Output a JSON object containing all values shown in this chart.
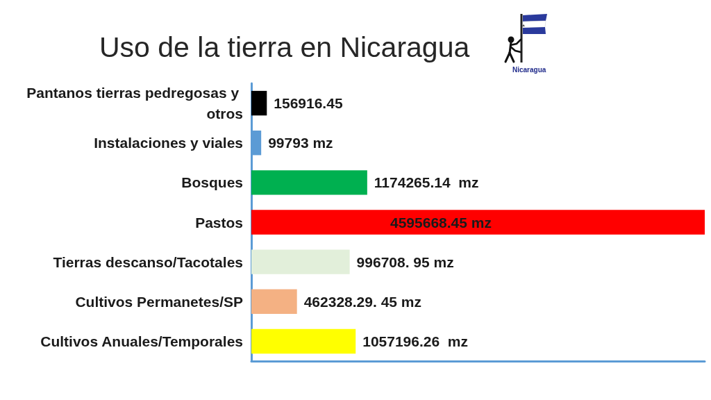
{
  "chart_data": {
    "type": "bar",
    "orientation": "horizontal",
    "title": "Uso de la tierra en Nicaragua",
    "categories": [
      "Pantanos tierras pedregosas y otros",
      "Instalaciones y viales",
      "Bosques",
      "Pastos",
      "Tierras descanso/Tacotales",
      "Cultivos Permanetes/SP",
      "Cultivos Anuales/Temporales"
    ],
    "values": [
      156916.45,
      99793,
      1174265.14,
      4595668.45,
      996708,
      462328.29,
      1057196.26
    ],
    "colors": [
      "#000000",
      "#5b9bd5",
      "#00b050",
      "#ff0000",
      "#e2efda",
      "#f4b183",
      "#ffff00"
    ],
    "value_labels": [
      "156916.45",
      "99793 mz",
      "1174265.14  mz",
      "4595668.45 mz",
      "996708. 95 mz",
      "462328.29. 45 mz",
      "1057196.26  mz"
    ],
    "tick_labels": "y",
    "annotations": [
      "Nicaragua"
    ]
  }
}
